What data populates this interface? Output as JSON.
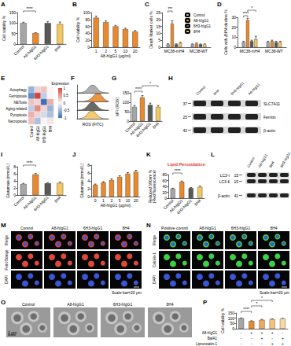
{
  "chart_data": [
    {
      "panel": "A",
      "type": "bar",
      "y_label": "Cell viability %",
      "categories": [
        "Control",
        "A8-hIgG1",
        "6H3-hIgG1",
        "8H4"
      ],
      "values": [
        100,
        52,
        100,
        95
      ],
      "errors": [
        4,
        2,
        8,
        10
      ],
      "colors": [
        "#a6a6a6",
        "#e9892f",
        "#595959",
        "#f3c75f"
      ],
      "ylim": [
        0,
        150
      ],
      "yticks": [
        0,
        50,
        100,
        150
      ],
      "comparisons": [
        {
          "groups": [
            "Control",
            "A8-hIgG1"
          ],
          "label": "****"
        }
      ]
    },
    {
      "panel": "B",
      "type": "bar",
      "x_label": "A8-hIgG1 (μg/ml)",
      "y_label": "Cell viability %",
      "categories": [
        "1",
        "2",
        "5",
        "10",
        "20"
      ],
      "values": [
        85,
        72,
        60,
        52,
        45
      ],
      "errors": [
        5,
        4,
        3,
        3,
        3
      ],
      "color": "#e9892f",
      "ylim": [
        0,
        100
      ],
      "yticks": [
        0,
        20,
        40,
        60,
        80,
        100
      ]
    },
    {
      "panel": "C",
      "type": "bar",
      "y_label": "Death Marker cells %",
      "categories": [
        "MC38-mH4",
        "MC38-WT"
      ],
      "series": [
        {
          "name": "Control",
          "color": "#a6a6a6",
          "values": [
            2,
            2
          ],
          "errors": [
            0.5,
            0.4
          ]
        },
        {
          "name": "A8-hIgG1",
          "color": "#e9892f",
          "values": [
            17,
            2.5
          ],
          "errors": [
            2,
            0.5
          ]
        },
        {
          "name": "6H3-hIgG1",
          "color": "#595959",
          "values": [
            2,
            2
          ],
          "errors": [
            0.4,
            0.3
          ]
        },
        {
          "name": "8H4",
          "color": "#f3c75f",
          "values": [
            3,
            2
          ],
          "errors": [
            0.6,
            0.4
          ]
        }
      ],
      "ylim": [
        0,
        25
      ],
      "yticks": [
        0,
        5,
        10,
        15,
        20,
        25
      ],
      "legend": "top-right",
      "comparisons": [
        {
          "category": "MC38-mH4",
          "groups": [
            "Control",
            "A8-hIgG1"
          ],
          "label": "***"
        }
      ]
    },
    {
      "panel": "D",
      "type": "bar",
      "y_label": "Cells with ΔΨM decline %",
      "categories": [
        "MC38-mH4",
        "MC38-WT"
      ],
      "series": [
        {
          "name": "Control",
          "color": "#a6a6a6",
          "values": [
            5,
            5
          ],
          "errors": [
            1,
            1
          ]
        },
        {
          "name": "A8-hIgG1",
          "color": "#e9892f",
          "values": [
            27,
            6
          ],
          "errors": [
            2,
            1
          ]
        },
        {
          "name": "6H3-hIgG1",
          "color": "#595959",
          "values": [
            6,
            5
          ],
          "errors": [
            1,
            1
          ]
        },
        {
          "name": "8H4",
          "color": "#f3c75f",
          "values": [
            8,
            5
          ],
          "errors": [
            3,
            1
          ]
        }
      ],
      "ylim": [
        0,
        30
      ],
      "yticks": [
        0,
        10,
        20,
        30
      ],
      "comparisons": [
        {
          "category": "MC38-mH4",
          "groups": [
            "Control",
            "A8-hIgG1"
          ],
          "label": "****"
        },
        {
          "category": "MC38-mH4",
          "groups": [
            "A8-hIgG1",
            "8H4"
          ],
          "label": "*"
        }
      ]
    },
    {
      "panel": "E",
      "type": "heatmap",
      "columns": [
        "Control",
        "A8-hIgG1",
        "6H3-hIgG1",
        "8H4"
      ],
      "rows": [
        "Autophagy",
        "Ferroptosis",
        "NETosis",
        "Aging-related",
        "Pyroptosis",
        "Necroptosis"
      ],
      "cells": [
        [
          -0.5,
          0.2,
          0.3,
          0
        ],
        [
          -0.8,
          1,
          -0.3,
          0
        ],
        [
          0.3,
          0.2,
          -1,
          0.4
        ],
        [
          -0.3,
          0.6,
          0.2,
          -0.5
        ],
        [
          0.4,
          0.2,
          -0.2,
          -0.4
        ],
        [
          0.3,
          -0.4,
          0,
          0.1
        ]
      ],
      "colorbar": {
        "title": "Expression",
        "range": [
          -1,
          1
        ],
        "ticks": [
          1,
          0.5,
          0,
          -0.5,
          -1
        ]
      }
    },
    {
      "panel": "F",
      "type": "area",
      "x_label": "ROS (FITC)",
      "x": [
        0,
        1,
        2,
        3,
        4,
        5,
        6,
        7,
        8,
        9,
        10
      ],
      "xlim": [
        0,
        10
      ],
      "ylim": [
        0,
        1
      ],
      "tick_labels": false,
      "series": [
        {
          "color": "#a6a6a6",
          "values": [
            0,
            0.02,
            0.1,
            0.35,
            0.8,
            1,
            0.75,
            0.3,
            0.08,
            0.02,
            0
          ]
        },
        {
          "color": "#e9892f",
          "values": [
            0,
            0,
            0.02,
            0.08,
            0.25,
            0.6,
            0.95,
            1,
            0.6,
            0.2,
            0.03
          ]
        },
        {
          "color": "#595959",
          "values": [
            0,
            0.02,
            0.12,
            0.4,
            0.85,
            1,
            0.7,
            0.28,
            0.07,
            0.01,
            0
          ]
        },
        {
          "color": "#f3c75f",
          "values": [
            0,
            0.03,
            0.15,
            0.45,
            0.9,
            1,
            0.65,
            0.25,
            0.06,
            0.01,
            0
          ]
        }
      ]
    },
    {
      "panel": "G",
      "type": "bar",
      "y_label": "MFI (ROS)",
      "categories": [
        "Control",
        "A8-hIgG1",
        "6H3-hIgG1",
        "8H4"
      ],
      "values": [
        75,
        125,
        85,
        75
      ],
      "errors": [
        8,
        10,
        10,
        8
      ],
      "colors": [
        "#a6a6a6",
        "#e9892f",
        "#595959",
        "#f3c75f"
      ],
      "ylim": [
        0,
        150
      ],
      "yticks": [
        0,
        50,
        100,
        150
      ],
      "comparisons": [
        {
          "groups": [
            "Control",
            "A8-hIgG1"
          ],
          "label": "****"
        },
        {
          "groups": [
            "A8-hIgG1",
            "8H4"
          ],
          "label": "*"
        }
      ]
    },
    {
      "panel": "I",
      "type": "bar",
      "y_label": "Glutamate (mmol/L)",
      "categories": [
        "Control",
        "A8-hIgG1",
        "6H3-hIgG1",
        "8H4"
      ],
      "values": [
        3.1,
        5.8,
        3.3,
        3.4
      ],
      "errors": [
        0.2,
        0.3,
        0.2,
        0.3
      ],
      "colors": [
        "#a6a6a6",
        "#e9892f",
        "#595959",
        "#f3c75f"
      ],
      "ylim": [
        0,
        8
      ],
      "yticks": [
        0,
        2,
        4,
        6,
        8
      ],
      "comparisons": [
        {
          "groups": [
            "Control",
            "A8-hIgG1"
          ],
          "label": "****"
        }
      ]
    },
    {
      "panel": "J",
      "type": "bar",
      "x_label": "A8-hIgG1 (μg/ml)",
      "y_label": "Glutamate (mmol/L)",
      "categories": [
        "0",
        "1",
        "2",
        "5",
        "10",
        "20"
      ],
      "values": [
        3,
        3.6,
        4.2,
        5,
        5.8,
        6.3
      ],
      "errors": [
        0.2,
        0.2,
        0.3,
        0.3,
        0.3,
        0.4
      ],
      "color": "#e9892f",
      "ylim": [
        0,
        8
      ],
      "yticks": [
        0,
        2,
        4,
        6,
        8
      ]
    },
    {
      "panel": "K",
      "type": "bar",
      "title": "Lipid Peroxidation",
      "y_label": "Reduced 590nm %\n(Red fluorescence)",
      "categories": [
        "Control",
        "A8-hIgG1",
        "6H3-hIgG1",
        "8H4"
      ],
      "values": [
        32,
        55,
        34,
        38
      ],
      "errors": [
        2,
        3,
        2,
        3
      ],
      "colors": [
        "#a6a6a6",
        "#e9892f",
        "#595959",
        "#f3c75f"
      ],
      "ylim": [
        0,
        80
      ],
      "yticks": [
        0,
        20,
        40,
        60,
        80
      ],
      "comparisons": [
        {
          "groups": [
            "Control",
            "A8-hIgG1"
          ],
          "label": "****"
        }
      ]
    },
    {
      "panel": "P",
      "type": "bar",
      "y_label": "Cell viability %",
      "categories": [
        null,
        null,
        null,
        null,
        null
      ],
      "values": [
        100,
        72,
        84,
        90,
        96
      ],
      "errors": [
        3,
        4,
        5,
        4,
        3
      ],
      "colors": [
        "#a6a6a6",
        "#e9892f",
        "#f0a860",
        "#f5c27a",
        "#f8d9a0"
      ],
      "ylim": [
        0,
        150
      ],
      "yticks": [
        0,
        50,
        100,
        150
      ],
      "comparisons": [
        {
          "groups": [
            0,
            1
          ],
          "label": "****"
        },
        {
          "groups": [
            1,
            2
          ],
          "label": "*"
        },
        {
          "groups": [
            1,
            3
          ],
          "label": "*"
        }
      ],
      "conditions": [
        {
          "name": "A8-hIgG1",
          "marks": [
            "-",
            "+",
            "+",
            "+",
            "-"
          ]
        },
        {
          "name": "BafA1",
          "marks": [
            "-",
            "-",
            "+",
            "-",
            "+"
          ]
        },
        {
          "name": "Liproxstatin-1",
          "marks": [
            "-",
            "-",
            "-",
            "+",
            "+"
          ]
        }
      ]
    }
  ],
  "blots": [
    {
      "panel": "H",
      "lanes": [
        "Control",
        "8H4",
        "6H3-hIgG1",
        "A8-hIgG1"
      ],
      "bands": [
        {
          "label": "SLC7A11",
          "mw": 37
        },
        {
          "label": "Ferritin",
          "mw": 25
        },
        {
          "label": "β-actin",
          "mw": 42
        }
      ]
    },
    {
      "panel": "L",
      "lanes": [
        "Control",
        "A8-hIgG1",
        "8H4",
        "6H3-hIgG1"
      ],
      "bands": [
        {
          "label": "LC3-Ⅰ",
          "mw": 15
        },
        {
          "label": "LC3-Ⅱ",
          "mw": 15
        },
        {
          "label": "β-actin",
          "mw": 42
        }
      ]
    }
  ],
  "micrographs": [
    {
      "panel": "M",
      "columns": [
        "Control",
        "A8-hIgG1",
        "6H3-hIgG1",
        "8H4"
      ],
      "rows": [
        "Merge",
        "FerroOrange",
        "DAPI"
      ],
      "scale_bar": "Scale bar=20 μm"
    },
    {
      "panel": "N",
      "columns": [
        "Positive control",
        "A8-hIgG1",
        "6H3-hIgG1",
        "8H4"
      ],
      "rows": [
        "Merge",
        "Calcein-1",
        "DAPI"
      ],
      "scale_bar": "Scale bar=20 μm"
    },
    {
      "panel": "O",
      "columns": [
        "Control",
        "A8-hIgG1",
        "6H3-hIgG1",
        "8H4"
      ],
      "scale_bar": "1 μm"
    }
  ]
}
